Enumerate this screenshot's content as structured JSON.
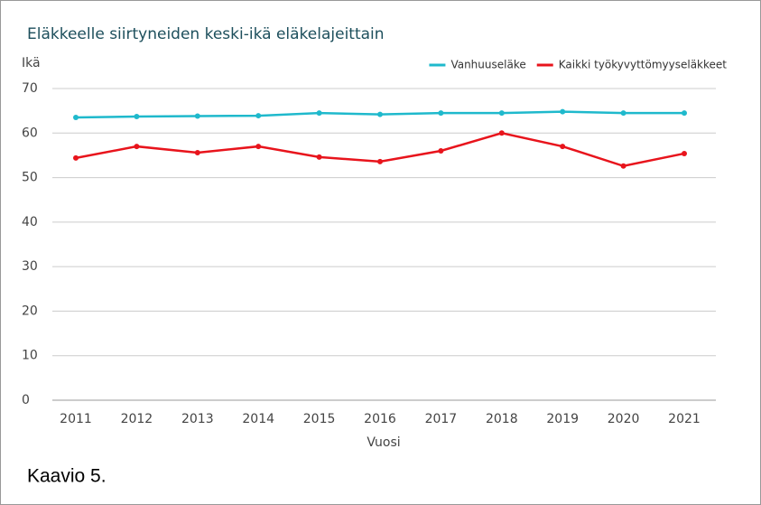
{
  "chart_data": {
    "type": "line",
    "title": "Eläkkeelle siirtyneiden keski-ikä eläkelajeittain",
    "y_label": "Ikä",
    "x_label": "Vuosi",
    "categories": [
      "2011",
      "2012",
      "2013",
      "2014",
      "2015",
      "2016",
      "2017",
      "2018",
      "2019",
      "2020",
      "2021"
    ],
    "series": [
      {
        "name": "Vanhuuseläke",
        "color": "#1fb9cc",
        "values": [
          63.5,
          63.7,
          63.8,
          63.9,
          64.5,
          64.2,
          64.5,
          64.5,
          64.8,
          64.5,
          64.5
        ]
      },
      {
        "name": "Kaikki työkyvyttömyyseläkkeet",
        "color": "#e8141c",
        "values": [
          54.4,
          57.0,
          55.6,
          57.0,
          54.6,
          53.6,
          56.0,
          60.0,
          57.0,
          52.6,
          55.4
        ]
      }
    ],
    "ylim": [
      0,
      70
    ],
    "yticks": [
      0,
      10,
      20,
      30,
      40,
      50,
      60,
      70
    ],
    "grid": true,
    "legend": "top-right"
  },
  "caption": "Kaavio 5."
}
